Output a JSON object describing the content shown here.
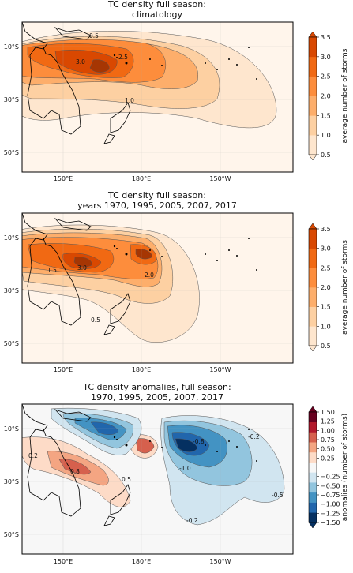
{
  "colors": {
    "ocean_bg": "#fff5eb",
    "anom_bg": "#f7f7f7",
    "sequential": [
      "#fff5eb",
      "#fee6ce",
      "#fdd0a2",
      "#fdae6b",
      "#fd8d3c",
      "#f16913",
      "#d94801",
      "#a63603",
      "#7f2704"
    ],
    "diverging": [
      "#053061",
      "#2166ac",
      "#4393c3",
      "#92c5de",
      "#d1e5f0",
      "#f7f7f7",
      "#fddbc7",
      "#f4a582",
      "#d6604d",
      "#b2182b",
      "#67001f"
    ]
  },
  "chart_data": [
    {
      "type": "heatmap",
      "title_lines": [
        "TC density full season:",
        "climatology"
      ],
      "xticks": [
        "150°E",
        "180°E",
        "150°W"
      ],
      "yticks": [
        "10°S",
        "30°S",
        "50°S"
      ],
      "colorbar": {
        "label": "average number of storms",
        "ticks": [
          "0.5",
          "1.0",
          "1.5",
          "2.0",
          "2.5",
          "3.0",
          "3.5"
        ],
        "range": [
          0.5,
          3.5
        ]
      },
      "contour_labels": [
        "0.5",
        "1.0",
        "2.5",
        "3.0",
        "1.5",
        "2.0"
      ]
    },
    {
      "type": "heatmap",
      "title_lines": [
        "TC density full season:",
        "years 1970, 1995, 2005, 2007, 2017"
      ],
      "xticks": [
        "150°E",
        "180°E",
        "150°W"
      ],
      "yticks": [
        "10°S",
        "30°S",
        "50°S"
      ],
      "colorbar": {
        "label": "average number of storms",
        "ticks": [
          "0.5",
          "1.0",
          "1.5",
          "2.0",
          "2.5",
          "3.0",
          "3.5"
        ],
        "range": [
          0.5,
          3.5
        ]
      },
      "contour_labels": [
        "1.5",
        "3.0",
        "2.0",
        "0.5"
      ]
    },
    {
      "type": "heatmap",
      "title_lines": [
        "TC density anomalies, full season:",
        "1970, 1995, 2005, 2007, 2017"
      ],
      "xticks": [
        "150°E",
        "180°E",
        "150°W"
      ],
      "yticks": [
        "10°S",
        "30°S",
        "50°S"
      ],
      "colorbar": {
        "label": "anomalies (number of storms)",
        "ticks": [
          "−1.50",
          "−1.25",
          "−1.00",
          "−0.75",
          "−0.50",
          "−0.25",
          "0.25",
          "0.50",
          "0.75",
          "1.00",
          "1.25",
          "1.50"
        ],
        "range": [
          -1.5,
          1.5
        ]
      },
      "contour_labels": [
        "0.2",
        "0.8",
        "0.5",
        "-0.8",
        "-0.2",
        "-1.0",
        "-0.5",
        "-0.2"
      ]
    }
  ]
}
